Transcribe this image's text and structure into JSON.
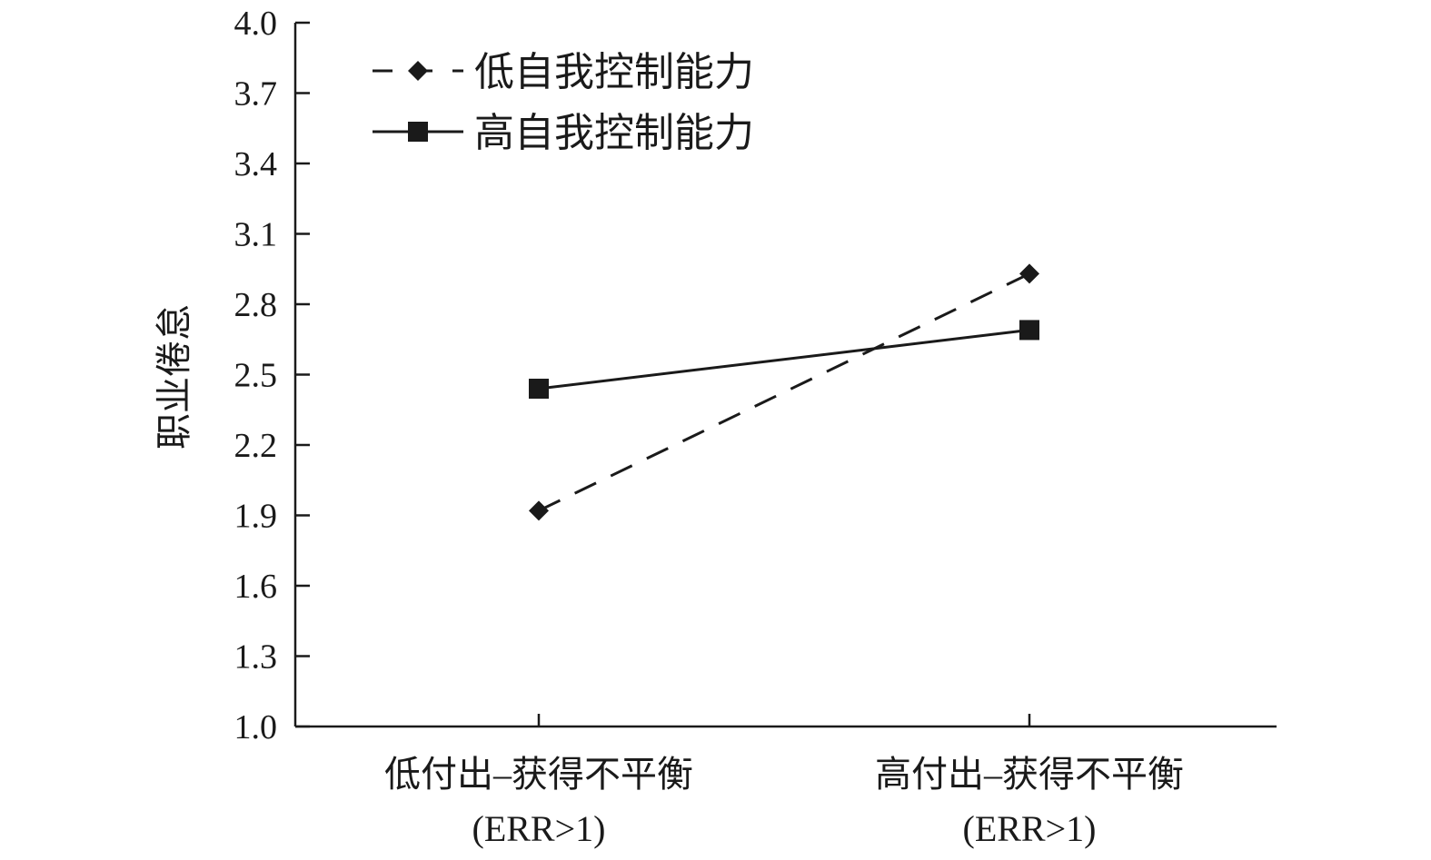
{
  "chart_data": {
    "type": "line",
    "title": "",
    "xlabel": "",
    "ylabel": "职业倦怠",
    "categories": [
      {
        "line1": "低付出–获得不平衡",
        "line2": "(ERR>1)"
      },
      {
        "line1": "高付出–获得不平衡",
        "line2": "(ERR>1)"
      }
    ],
    "ylim": [
      1.0,
      4.0
    ],
    "yticks": [
      "1.0",
      "1.3",
      "1.6",
      "1.9",
      "2.2",
      "2.5",
      "2.8",
      "3.1",
      "3.4",
      "3.7",
      "4.0"
    ],
    "grid": false,
    "legend_position": "top-left",
    "series": [
      {
        "name": "低自我控制能力",
        "values": [
          1.92,
          2.93
        ],
        "line_style": "dashed",
        "marker": "diamond",
        "color": "#1a1a1a"
      },
      {
        "name": "高自我控制能力",
        "values": [
          2.44,
          2.69
        ],
        "line_style": "solid",
        "marker": "square",
        "color": "#1a1a1a"
      }
    ]
  }
}
